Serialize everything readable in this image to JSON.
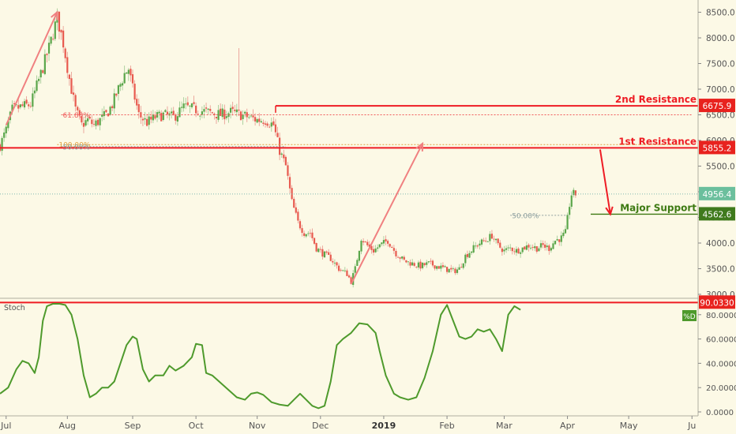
{
  "chart_data": [
    {
      "type": "candlestick",
      "ylim": [
        3000,
        8600
      ],
      "y_ticks": [
        "8500.0",
        "8000.0",
        "7500.0",
        "7000.0",
        "6500.0",
        "6000.0",
        "5500.0",
        "5000.0",
        "4500.0",
        "4000.0",
        "3500.0",
        "3000.0"
      ],
      "y_tick_values": [
        8500,
        8000,
        7500,
        7000,
        6500,
        6000,
        5500,
        5000,
        4500,
        4000,
        3500,
        3000
      ],
      "x_labels": [
        "Jul",
        "Aug",
        "Sep",
        "Oct",
        "Nov",
        "Dec",
        "2019",
        "Feb",
        "Mar",
        "Apr",
        "May",
        "Ju"
      ],
      "x_label_day": [
        3,
        33,
        65,
        96,
        126,
        157,
        188,
        219,
        247,
        278,
        308,
        339
      ],
      "last_day": 282,
      "price_path": [
        [
          0,
          5900
        ],
        [
          3,
          6200
        ],
        [
          6,
          6600
        ],
        [
          10,
          6650
        ],
        [
          15,
          6700
        ],
        [
          20,
          7300
        ],
        [
          24,
          7800
        ],
        [
          26,
          8100
        ],
        [
          28,
          8400
        ],
        [
          31,
          7900
        ],
        [
          34,
          7200
        ],
        [
          37,
          6600
        ],
        [
          40,
          6300
        ],
        [
          43,
          6400
        ],
        [
          46,
          6300
        ],
        [
          49,
          6400
        ],
        [
          52,
          6500
        ],
        [
          55,
          6700
        ],
        [
          58,
          7000
        ],
        [
          61,
          7300
        ],
        [
          63,
          7400
        ],
        [
          65,
          7000
        ],
        [
          68,
          6500
        ],
        [
          72,
          6350
        ],
        [
          76,
          6450
        ],
        [
          80,
          6500
        ],
        [
          85,
          6450
        ],
        [
          90,
          6650
        ],
        [
          96,
          6600
        ],
        [
          102,
          6550
        ],
        [
          108,
          6500
        ],
        [
          113,
          6550
        ],
        [
          118,
          6500
        ],
        [
          122,
          6450
        ],
        [
          126,
          6400
        ],
        [
          130,
          6400
        ],
        [
          134,
          6300
        ],
        [
          137,
          5800
        ],
        [
          140,
          5500
        ],
        [
          143,
          4800
        ],
        [
          146,
          4400
        ],
        [
          149,
          4200
        ],
        [
          152,
          4200
        ],
        [
          155,
          3900
        ],
        [
          158,
          3800
        ],
        [
          162,
          3700
        ],
        [
          166,
          3500
        ],
        [
          170,
          3400
        ],
        [
          172,
          3250
        ],
        [
          174,
          3500
        ],
        [
          177,
          4100
        ],
        [
          180,
          3950
        ],
        [
          183,
          3850
        ],
        [
          186,
          3950
        ],
        [
          190,
          4050
        ],
        [
          194,
          3800
        ],
        [
          198,
          3650
        ],
        [
          202,
          3600
        ],
        [
          206,
          3550
        ],
        [
          210,
          3600
        ],
        [
          214,
          3550
        ],
        [
          218,
          3500
        ],
        [
          222,
          3450
        ],
        [
          225,
          3500
        ],
        [
          228,
          3750
        ],
        [
          232,
          3900
        ],
        [
          235,
          4000
        ],
        [
          238,
          4050
        ],
        [
          241,
          4150
        ],
        [
          244,
          3950
        ],
        [
          247,
          3850
        ],
        [
          250,
          3900
        ],
        [
          253,
          3850
        ],
        [
          256,
          3900
        ],
        [
          259,
          3950
        ],
        [
          263,
          3900
        ],
        [
          266,
          3950
        ],
        [
          269,
          3900
        ],
        [
          272,
          4050
        ],
        [
          275,
          4100
        ],
        [
          277,
          4200
        ],
        [
          279,
          4750
        ],
        [
          280,
          4950
        ],
        [
          282,
          4956
        ]
      ],
      "spike": {
        "day": 117,
        "high": 7800
      },
      "levels": [
        {
          "label": "2nd Resistance",
          "price": 6675.9,
          "badge": "6675.9",
          "color": "#ee1c24"
        },
        {
          "label": "1st Resistance",
          "price": 5855.2,
          "badge": "5855.2",
          "color": "#ee1c24"
        },
        {
          "label": "Major Support",
          "price": 4562.6,
          "badge": "4562.6",
          "color": "#3d7a12"
        }
      ],
      "last_price": {
        "value": 4956.4,
        "badge": "4956.4"
      },
      "fib": [
        {
          "label": "61.80%",
          "price": 6500,
          "from_day": 30,
          "to_day": 339,
          "color": "#f05a5a"
        },
        {
          "label": "100.00%",
          "price": 5920,
          "from_day": 28,
          "to_day": 339,
          "color": "#e0a040"
        },
        {
          "label": "50.00%",
          "price": 5880,
          "from_day": 30,
          "to_day": 140,
          "color": "#8ea0a0"
        },
        {
          "label": "50.00%",
          "price": 4540,
          "from_day": 250,
          "to_day": 278,
          "color": "#8ea0a0"
        }
      ],
      "trend_arrows": [
        {
          "from": [
            3,
            6300
          ],
          "to": [
            28,
            8500
          ]
        },
        {
          "from": [
            172,
            3200
          ],
          "to": [
            207,
            5940
          ]
        }
      ],
      "target_arrow": {
        "from": [
          294,
          5855.2
        ],
        "to": [
          299,
          4562.6
        ]
      }
    },
    {
      "type": "line",
      "title": "Stoch",
      "series": [
        {
          "name": "%D",
          "color": "#4e9a2c",
          "values": [
            [
              0,
              15
            ],
            [
              4,
              20
            ],
            [
              8,
              35
            ],
            [
              11,
              42
            ],
            [
              14,
              40
            ],
            [
              17,
              32
            ],
            [
              19,
              45
            ],
            [
              21,
              75
            ],
            [
              23,
              87
            ],
            [
              26,
              89
            ],
            [
              29,
              89
            ],
            [
              32,
              88
            ],
            [
              35,
              80
            ],
            [
              38,
              60
            ],
            [
              41,
              30
            ],
            [
              44,
              12
            ],
            [
              47,
              15
            ],
            [
              50,
              20
            ],
            [
              53,
              20
            ],
            [
              56,
              25
            ],
            [
              59,
              40
            ],
            [
              62,
              55
            ],
            [
              65,
              62
            ],
            [
              67,
              60
            ],
            [
              70,
              35
            ],
            [
              73,
              25
            ],
            [
              76,
              30
            ],
            [
              80,
              30
            ],
            [
              83,
              38
            ],
            [
              86,
              34
            ],
            [
              90,
              38
            ],
            [
              94,
              45
            ],
            [
              96,
              56
            ],
            [
              99,
              55
            ],
            [
              101,
              32
            ],
            [
              104,
              30
            ],
            [
              108,
              24
            ],
            [
              112,
              18
            ],
            [
              116,
              12
            ],
            [
              120,
              10
            ],
            [
              123,
              15
            ],
            [
              126,
              16
            ],
            [
              129,
              14
            ],
            [
              133,
              8
            ],
            [
              137,
              6
            ],
            [
              141,
              5
            ],
            [
              144,
              10
            ],
            [
              147,
              15
            ],
            [
              150,
              10
            ],
            [
              153,
              5
            ],
            [
              156,
              3
            ],
            [
              159,
              5
            ],
            [
              162,
              25
            ],
            [
              165,
              55
            ],
            [
              168,
              60
            ],
            [
              172,
              65
            ],
            [
              176,
              73
            ],
            [
              180,
              72
            ],
            [
              184,
              65
            ],
            [
              186,
              50
            ],
            [
              189,
              30
            ],
            [
              193,
              15
            ],
            [
              196,
              12
            ],
            [
              200,
              10
            ],
            [
              204,
              12
            ],
            [
              208,
              28
            ],
            [
              212,
              50
            ],
            [
              216,
              80
            ],
            [
              219,
              88
            ],
            [
              222,
              75
            ],
            [
              225,
              62
            ],
            [
              228,
              60
            ],
            [
              231,
              62
            ],
            [
              234,
              68
            ],
            [
              237,
              66
            ],
            [
              240,
              68
            ],
            [
              243,
              60
            ],
            [
              246,
              50
            ],
            [
              249,
              80
            ],
            [
              252,
              87
            ],
            [
              255,
              84
            ]
          ]
        }
      ],
      "ylim": [
        0,
        100
      ],
      "y_ticks": [
        "80.0000",
        "60.0000",
        "40.0000",
        "20.0000",
        "0.0000"
      ],
      "y_tick_values": [
        80,
        60,
        40,
        20,
        0
      ],
      "level": {
        "value": 90.033,
        "badge": "90.0330"
      },
      "legend_badge": "%D"
    }
  ]
}
